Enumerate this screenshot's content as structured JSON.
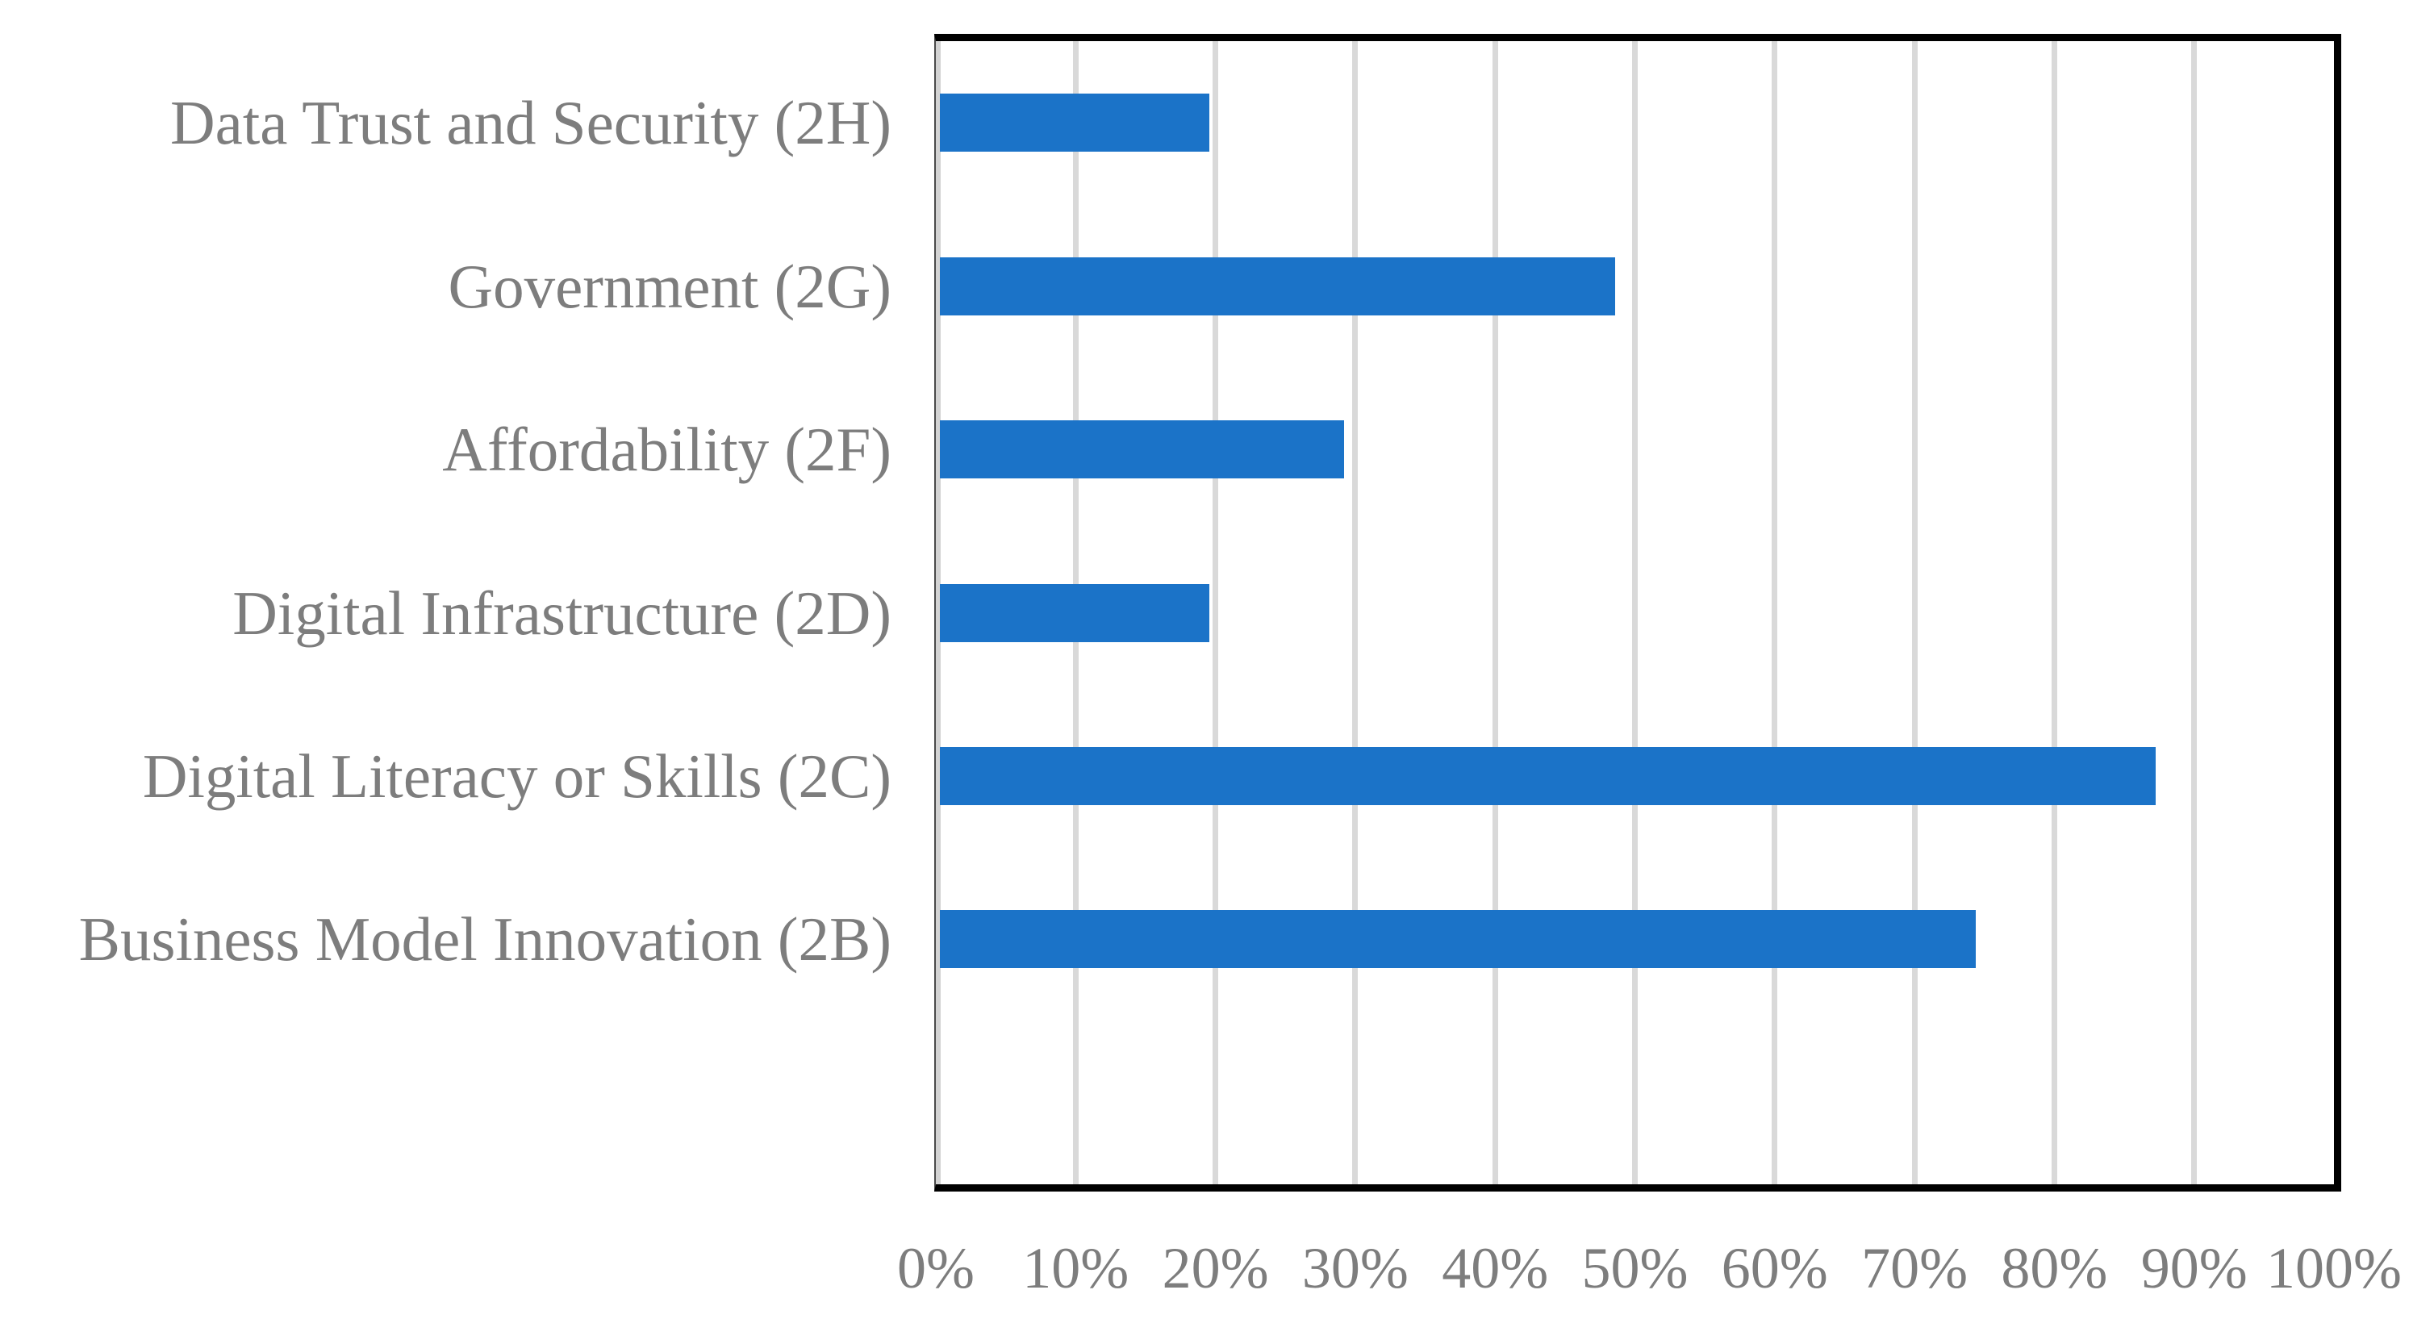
{
  "figure": {
    "background": "#ffffff"
  },
  "chart_data": {
    "type": "bar",
    "orientation": "horizontal",
    "title": "",
    "xlabel": "",
    "ylabel": "",
    "categories": [
      "Data Trust and Security (2H)",
      "Government (2G)",
      "Affordability (2F)",
      "Digital Infrastructure (2D)",
      "Digital Literacy or Skills (2C)",
      "Business Model Innovation (2B)"
    ],
    "values": [
      19.4,
      48.4,
      29.0,
      19.4,
      87.1,
      74.2
    ],
    "unit": "%",
    "xlim": [
      0,
      100
    ],
    "x_tick_step": 10,
    "x_tick_labels": [
      "0%",
      "10%",
      "20%",
      "30%",
      "40%",
      "50%",
      "60%",
      "70%",
      "80%",
      "90%",
      "100%"
    ],
    "grid": "vertical",
    "legend": "none",
    "category_slots": 7,
    "bar_color": "#1b73c8",
    "gridline_color": "#d9d9d9",
    "zero_axis_band_color": "#d3d3d3",
    "label_color": "#7d7d7d",
    "border_color": "#000000"
  }
}
